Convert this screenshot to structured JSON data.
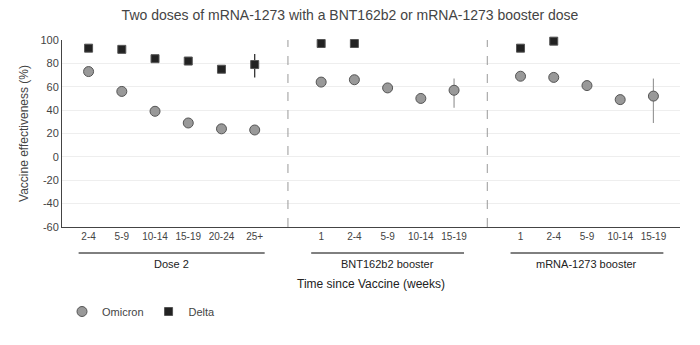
{
  "chart_data": {
    "type": "scatter",
    "title": "Two doses of mRNA-1273 with a BNT162b2 or mRNA-1273 booster dose",
    "xlabel": "Time since Vaccine (weeks)",
    "ylabel": "Vaccine effectiveness (%)",
    "categories": [
      "2-4",
      "5-9",
      "10-14",
      "15-19",
      "20-24",
      "25+",
      null,
      "1",
      "2-4",
      "5-9",
      "10-14",
      "15-19",
      null,
      "1",
      "2-4",
      "5-9",
      "10-14",
      "15-19"
    ],
    "sections": [
      "Dose 2",
      "BNT162b2 booster",
      "mRNA-1273 booster"
    ],
    "ylim": [
      -60,
      100
    ],
    "yticks": [
      -60,
      -40,
      -20,
      0,
      20,
      40,
      60,
      80,
      100
    ],
    "grid": true,
    "legend": "lower left",
    "series": [
      {
        "name": "Omicron",
        "color": "#999999",
        "marker": "circle",
        "values": [
          73,
          56,
          39,
          29,
          24,
          23,
          null,
          64,
          66,
          59,
          50,
          57,
          null,
          69,
          68,
          61,
          49,
          52
        ],
        "lower": [
          73,
          56,
          39,
          29,
          24,
          23,
          null,
          64,
          66,
          59,
          50,
          42,
          null,
          69,
          68,
          61,
          49,
          29
        ],
        "upper": [
          73,
          56,
          39,
          29,
          24,
          23,
          null,
          64,
          66,
          59,
          50,
          67,
          null,
          69,
          68,
          61,
          49,
          67
        ]
      },
      {
        "name": "Delta",
        "color": "#222222",
        "marker": "square",
        "values": [
          93,
          92,
          84,
          82,
          75,
          79,
          null,
          97,
          97,
          null,
          null,
          null,
          null,
          93,
          99,
          null,
          null,
          null
        ],
        "lower": [
          93,
          92,
          84,
          82,
          75,
          68,
          null,
          94,
          95,
          null,
          null,
          null,
          null,
          90,
          97,
          null,
          null,
          null
        ],
        "upper": [
          93,
          92,
          84,
          82,
          75,
          88,
          null,
          99,
          99,
          null,
          null,
          null,
          null,
          96,
          100,
          null,
          null,
          null
        ]
      }
    ]
  }
}
